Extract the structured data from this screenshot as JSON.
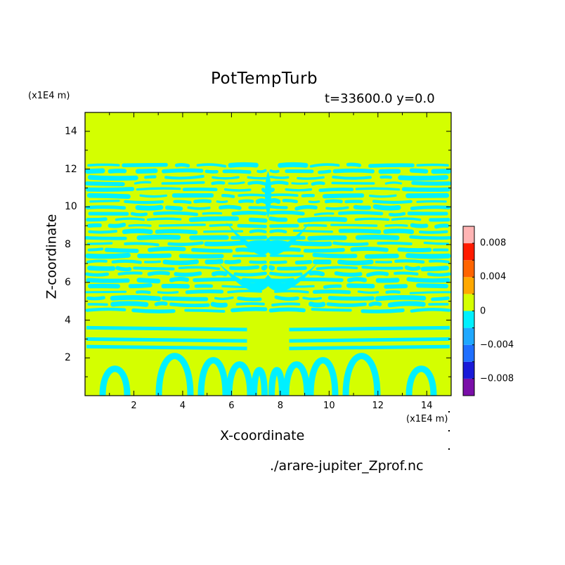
{
  "chart_data": {
    "type": "heatmap",
    "title": "PotTempTurb",
    "subtitle": "t=33600.0 y=0.0",
    "xlabel": "X-coordinate",
    "ylabel": "Z-coordinate",
    "x_unit": "(x1E4 m)",
    "y_unit": "(x1E4 m)",
    "source": "./arare-jupiter_Zprof.nc",
    "xlim": [
      0,
      15
    ],
    "ylim": [
      0,
      15
    ],
    "xticks": [
      "2",
      "4",
      "6",
      "8",
      "10",
      "12",
      "14"
    ],
    "yticks": [
      "2",
      "4",
      "6",
      "8",
      "10",
      "12",
      "14"
    ],
    "colorbar": {
      "levels": [
        -0.01,
        -0.008,
        -0.006,
        -0.004,
        -0.002,
        0,
        0.002,
        0.004,
        0.006,
        0.008,
        0.01
      ],
      "colors": [
        "#7a0fa8",
        "#1a1ad8",
        "#1f6fff",
        "#1fa8ff",
        "#00f0ff",
        "#d4ff00",
        "#ffa800",
        "#ff6400",
        "#ff1a00",
        "#ffb4b4"
      ],
      "tick_labels": [
        "0.008",
        "0.004",
        "0",
        "−0.004",
        "−0.008"
      ]
    },
    "field_description": {
      "dominant_value": 0,
      "negative_region_z": [
        0,
        12.3
      ],
      "negative_value": -0.002,
      "upper_region_z": [
        12.3,
        15
      ],
      "upper_value": 0
    }
  },
  "colors": {
    "positive_near_zero": "#d4ff00",
    "negative_near_zero": "#00f0ff"
  }
}
